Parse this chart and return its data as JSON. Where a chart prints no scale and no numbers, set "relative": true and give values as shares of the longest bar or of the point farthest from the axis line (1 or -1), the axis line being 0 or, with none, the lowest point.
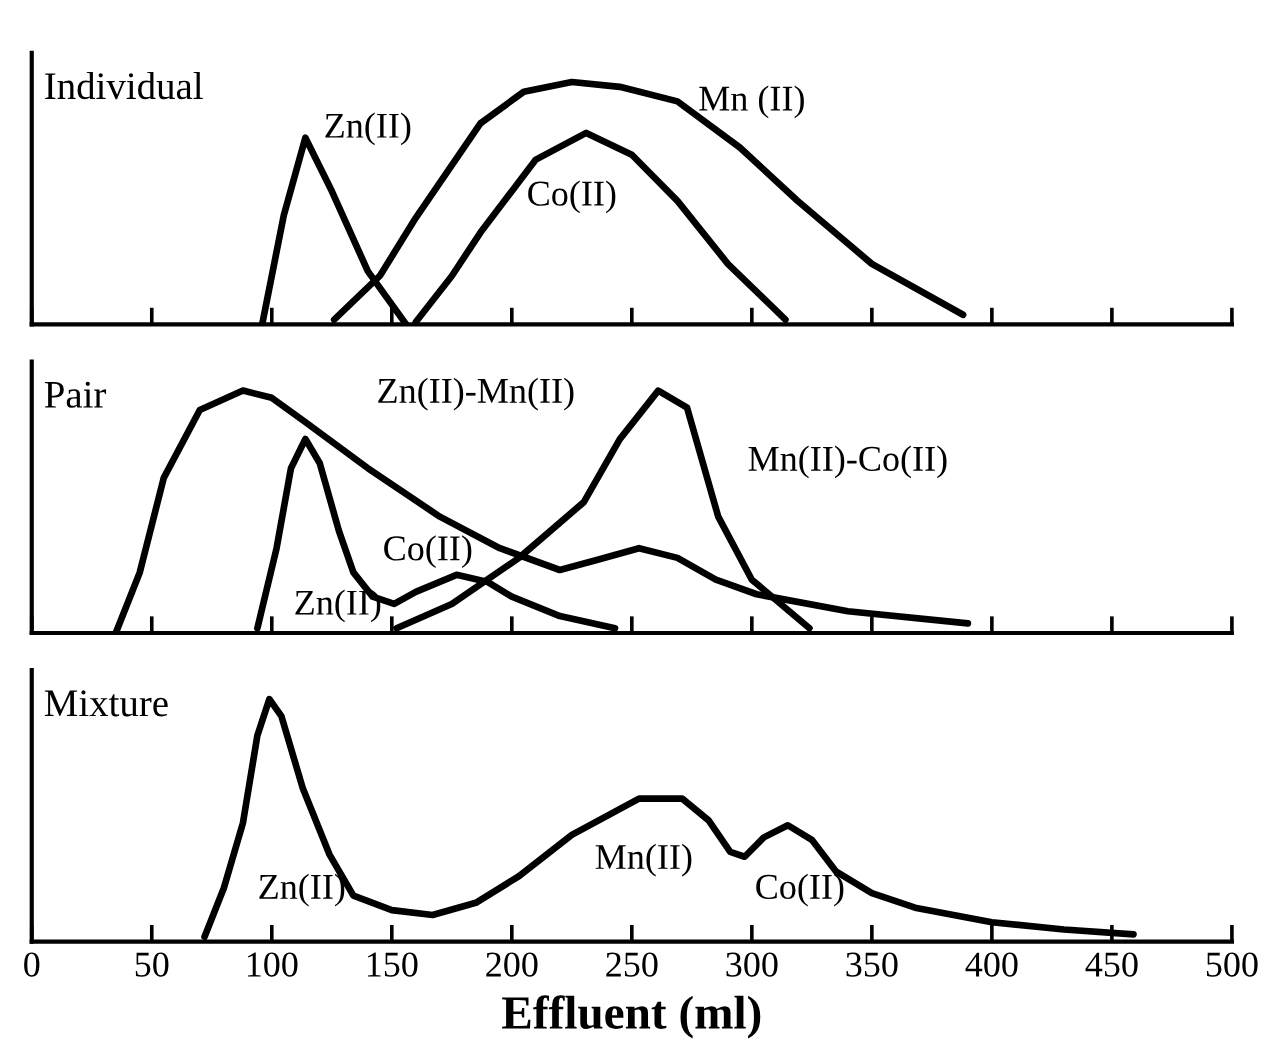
{
  "chart_data": [
    {
      "type": "line",
      "title": "Individual",
      "relative": true,
      "xlim": [
        0,
        500
      ],
      "xticks": [
        0,
        50,
        100,
        150,
        200,
        250,
        300,
        350,
        400,
        450,
        500
      ],
      "tick_labels": false,
      "grid": false,
      "legend": false,
      "series": [
        {
          "color": "#000000",
          "x": [
            96,
            105,
            114,
            125,
            140,
            156
          ],
          "values": [
            0,
            0.45,
            0.77,
            0.55,
            0.22,
            0
          ]
        },
        {
          "color": "#000000",
          "x": [
            126,
            145,
            160,
            187,
            205,
            225,
            245,
            269,
            295,
            319,
            350,
            388
          ],
          "values": [
            0.02,
            0.2,
            0.44,
            0.83,
            0.96,
            1.0,
            0.98,
            0.92,
            0.73,
            0.51,
            0.25,
            0.04
          ]
        },
        {
          "color": "#000000",
          "x": [
            160,
            175,
            187,
            210,
            231,
            250,
            269,
            290,
            314
          ],
          "values": [
            0.01,
            0.2,
            0.38,
            0.68,
            0.79,
            0.7,
            0.51,
            0.25,
            0.02
          ]
        }
      ],
      "annotations": [
        "Zn(II)",
        "Mn (II)",
        "Co(II)"
      ]
    },
    {
      "type": "line",
      "title": "Pair",
      "relative": true,
      "xlim": [
        0,
        500
      ],
      "xticks": [
        0,
        50,
        100,
        150,
        200,
        250,
        300,
        350,
        400,
        450,
        500
      ],
      "tick_labels": false,
      "grid": false,
      "legend": false,
      "series": [
        {
          "color": "#000000",
          "x": [
            35,
            45,
            55,
            70,
            88,
            100,
            114,
            140,
            170,
            195,
            220,
            235,
            253,
            269,
            285,
            302,
            340,
            390
          ],
          "values": [
            0,
            0.25,
            0.64,
            0.92,
            1.0,
            0.97,
            0.87,
            0.68,
            0.48,
            0.35,
            0.26,
            0.3,
            0.35,
            0.31,
            0.22,
            0.16,
            0.09,
            0.04
          ]
        },
        {
          "color": "#000000",
          "x": [
            94,
            102,
            108,
            114,
            120,
            128,
            134,
            142,
            151,
            160,
            177,
            190,
            200,
            220,
            243
          ],
          "values": [
            0.02,
            0.35,
            0.68,
            0.8,
            0.7,
            0.42,
            0.25,
            0.15,
            0.12,
            0.17,
            0.24,
            0.21,
            0.15,
            0.07,
            0.02
          ]
        },
        {
          "color": "#000000",
          "x": [
            152,
            175,
            203,
            230,
            245,
            261,
            273,
            286,
            300,
            324
          ],
          "values": [
            0.02,
            0.12,
            0.31,
            0.54,
            0.8,
            1.0,
            0.93,
            0.48,
            0.22,
            0.02
          ]
        }
      ],
      "annotations": [
        "Zn(II)-Mn(II)",
        "Mn(II)-Co(II)",
        "Co(II)",
        "Zn(II)"
      ]
    },
    {
      "type": "line",
      "title": "Mixture",
      "xlabel": "Effluent (ml)",
      "relative": true,
      "xlim": [
        0,
        500
      ],
      "xticks": [
        0,
        50,
        100,
        150,
        200,
        250,
        300,
        350,
        400,
        450,
        500
      ],
      "tick_labels": "x",
      "grid": false,
      "legend": false,
      "series": [
        {
          "color": "#000000",
          "x": [
            72,
            80,
            88,
            94,
            99,
            104,
            113,
            124,
            134,
            150,
            167,
            185,
            203,
            225,
            253,
            271,
            282,
            291,
            297,
            305,
            315,
            325,
            335,
            350,
            368,
            400,
            430,
            459
          ],
          "values": [
            0.02,
            0.22,
            0.49,
            0.85,
            1.0,
            0.93,
            0.63,
            0.36,
            0.19,
            0.13,
            0.11,
            0.16,
            0.27,
            0.44,
            0.59,
            0.59,
            0.5,
            0.37,
            0.35,
            0.43,
            0.48,
            0.42,
            0.29,
            0.2,
            0.14,
            0.08,
            0.05,
            0.03
          ]
        }
      ],
      "annotations": [
        "Zn(II)",
        "Mn(II)",
        "Co(II)"
      ]
    }
  ]
}
